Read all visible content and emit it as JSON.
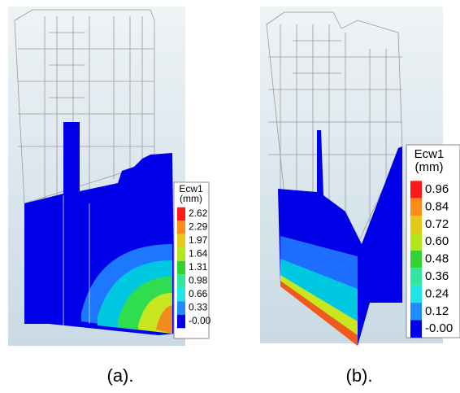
{
  "panels": [
    {
      "legend": {
        "title": "Ecw1",
        "unit": "(mm)",
        "labels": [
          "2.62",
          "2.29",
          "1.97",
          "1.64",
          "1.31",
          "0.98",
          "0.66",
          "0.33",
          "-0.00"
        ]
      },
      "caption": "(a)."
    },
    {
      "legend": {
        "title": "Ecw1",
        "unit": "(mm)",
        "labels": [
          "0.96",
          "0.84",
          "0.72",
          "0.60",
          "0.48",
          "0.36",
          "0.24",
          "0.12",
          "-0.00"
        ]
      },
      "caption": "(b)."
    }
  ]
}
